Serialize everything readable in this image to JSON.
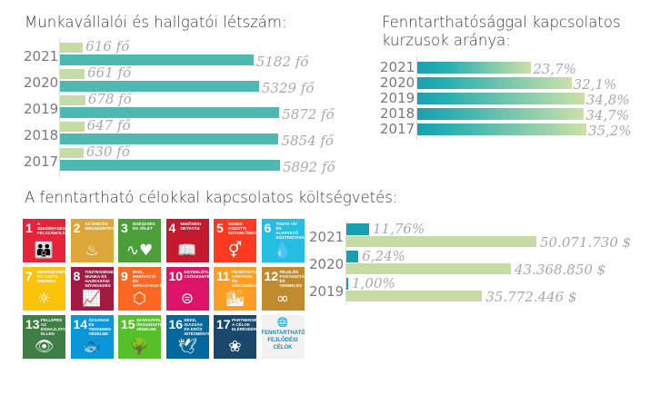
{
  "colors": {
    "teal": "#4fb8b0",
    "green": "#c7dba7",
    "teal_dark": "#1a9fb0",
    "grad_end": "#cde0a8"
  },
  "chart_data": [
    {
      "type": "bar",
      "title": "Munkavállalói és hallgatói létszám:",
      "categories": [
        "2021",
        "2020",
        "2019",
        "2018",
        "2017"
      ],
      "series": [
        {
          "values": [
            616,
            661,
            678,
            647,
            630
          ],
          "labels": [
            "616 fő",
            "661 fő",
            "678 fő",
            "647 fő",
            "630 fő"
          ]
        },
        {
          "values": [
            5182,
            5329,
            5872,
            5854,
            5892
          ],
          "labels": [
            "5182 fő",
            "5329 fő",
            "5872 fő",
            "5854 fő",
            "5892 fő"
          ]
        }
      ]
    },
    {
      "type": "bar",
      "title_line1": "Fenntarthatósággal    kapcsolatos",
      "title_line2": "kurzusok aránya:",
      "categories": [
        "2021",
        "2020",
        "2019",
        "2018",
        "2017"
      ],
      "values": [
        23.7,
        32.1,
        34.8,
        34.7,
        35.2
      ],
      "labels": [
        "23,7%",
        "32,1%",
        "34,8%",
        "34,7%",
        "35,2%"
      ]
    },
    {
      "type": "bar",
      "title": "A fenntartható célokkal kapcsolatos költségvetés:",
      "categories": [
        "2021",
        "2020",
        "2019"
      ],
      "series": [
        {
          "values": [
            11.76,
            6.24,
            1.0
          ],
          "labels": [
            "11,76%",
            "6,24%",
            "1,00%"
          ]
        },
        {
          "values": [
            50071730,
            43368850,
            35772446
          ],
          "labels": [
            "50.071.730 $",
            "43.368.850 $",
            "35.772.446 $"
          ]
        }
      ]
    }
  ],
  "sdg": {
    "tiles": [
      {
        "num": "1",
        "label": "A szegénység felszámolása",
        "color": "#E5243B",
        "icon": "people-icon",
        "glyph": "👪"
      },
      {
        "num": "2",
        "label": "Az éhezés megszüntetése",
        "color": "#DDA63A",
        "icon": "bowl-icon",
        "glyph": "♨"
      },
      {
        "num": "3",
        "label": "Egészség és jólét",
        "color": "#4C9F38",
        "icon": "heartbeat-icon",
        "glyph": "∿♥"
      },
      {
        "num": "4",
        "label": "Minőségi oktatás",
        "color": "#C5192D",
        "icon": "book-icon",
        "glyph": "📖"
      },
      {
        "num": "5",
        "label": "Nemek közötti egyenlőség",
        "color": "#FF3A21",
        "icon": "gender-icon",
        "glyph": "⚥"
      },
      {
        "num": "6",
        "label": "Tiszta víz és alapvető köztisztaság",
        "color": "#26BDE2",
        "icon": "water-icon",
        "glyph": "💧"
      },
      {
        "num": "7",
        "label": "Megfizethető és tiszta energia",
        "color": "#FCC30B",
        "icon": "sun-icon",
        "glyph": "☼"
      },
      {
        "num": "8",
        "label": "Tisztességes munka és gazdasági növekedés",
        "color": "#A21942",
        "icon": "growth-chart-icon",
        "glyph": "📈"
      },
      {
        "num": "9",
        "label": "Ipar, innováció és infrastruktúra",
        "color": "#FD6925",
        "icon": "cubes-icon",
        "glyph": "⬡"
      },
      {
        "num": "10",
        "label": "Egyenlőtlenségek csökkentése",
        "color": "#DD1367",
        "icon": "equal-icon",
        "glyph": "⊜"
      },
      {
        "num": "11",
        "label": "Fenntartható városok és közösségek",
        "color": "#FD9D24",
        "icon": "buildings-icon",
        "glyph": "🏙"
      },
      {
        "num": "12",
        "label": "Felelős fogyasztás és termelés",
        "color": "#BF8B2E",
        "icon": "infinity-icon",
        "glyph": "∞"
      },
      {
        "num": "13",
        "label": "Fellépés az éghajlatváltozás ellen",
        "color": "#3F7E44",
        "icon": "eye-icon",
        "glyph": "👁"
      },
      {
        "num": "14",
        "label": "Óceánok és tengerek védelme",
        "color": "#0A97D9",
        "icon": "fish-icon",
        "glyph": "🐟"
      },
      {
        "num": "15",
        "label": "Szárazföldi ökoszisztémák védelme",
        "color": "#56C02B",
        "icon": "tree-icon",
        "glyph": "🌳"
      },
      {
        "num": "16",
        "label": "Béke, igazság és erős intézmények",
        "color": "#00689D",
        "icon": "dove-icon",
        "glyph": "🕊"
      },
      {
        "num": "17",
        "label": "Partnerség a célok eléréséért",
        "color": "#19486A",
        "icon": "rings-icon",
        "glyph": "❀"
      }
    ],
    "logo_text": "FENNTARTHATÓ FEJLŐDÉSI CÉLOK"
  }
}
